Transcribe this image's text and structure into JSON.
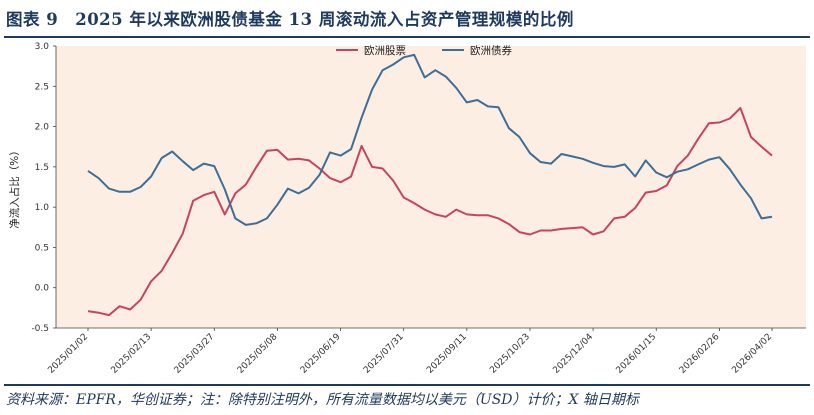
{
  "header": {
    "title": "图表 9　2025 年以来欧洲股债基金 13 周滚动流入占资产管理规模的比例"
  },
  "footer": {
    "source": "资料来源：EPFR，华创证券；注：除特别注明外，所有流量数据均以美元（USD）计价；X 轴日期标"
  },
  "chart_data": {
    "type": "line",
    "ylabel": "净流入占比（%）",
    "ylim": [
      -0.5,
      3.0
    ],
    "yticks": [
      "-0.5",
      "0.0",
      "0.5",
      "1.0",
      "1.5",
      "2.0",
      "2.5",
      "3.0"
    ],
    "xticks": [
      "2025/01/02",
      "2025/02/13",
      "2025/03/27",
      "2025/05/08",
      "2025/06/19",
      "2025/07/31",
      "2025/09/11",
      "2025/10/23",
      "2025/12/04",
      "2026/01/15",
      "2026/02/26",
      "2026/04/02"
    ],
    "x": [
      "2025/01/02",
      "2025/01/09",
      "2025/01/16",
      "2025/01/23",
      "2025/01/30",
      "2025/02/06",
      "2025/02/13",
      "2025/02/20",
      "2025/02/27",
      "2025/03/06",
      "2025/03/13",
      "2025/03/20",
      "2025/03/27",
      "2025/04/03",
      "2025/04/10",
      "2025/04/17",
      "2025/04/24",
      "2025/05/01",
      "2025/05/08",
      "2025/05/15",
      "2025/05/22",
      "2025/05/29",
      "2025/06/05",
      "2025/06/12",
      "2025/06/19",
      "2025/06/26",
      "2025/07/03",
      "2025/07/10",
      "2025/07/17",
      "2025/07/24",
      "2025/07/31",
      "2025/08/07",
      "2025/08/14",
      "2025/08/21",
      "2025/08/28",
      "2025/09/04",
      "2025/09/11",
      "2025/09/18",
      "2025/09/25",
      "2025/10/02",
      "2025/10/09",
      "2025/10/16",
      "2025/10/23",
      "2025/10/30",
      "2025/11/06",
      "2025/11/13",
      "2025/11/20",
      "2025/11/27",
      "2025/12/04",
      "2025/12/11",
      "2025/12/18",
      "2025/12/25",
      "2026/01/01",
      "2026/01/08",
      "2026/01/15",
      "2026/01/22",
      "2026/01/29",
      "2026/02/05",
      "2026/02/12",
      "2026/02/19",
      "2026/02/26",
      "2026/03/05",
      "2026/03/12",
      "2026/03/19",
      "2026/03/26",
      "2026/04/02"
    ],
    "series": [
      {
        "name": "欧洲股票",
        "color": "#c8435e",
        "values": [
          -0.29,
          -0.31,
          -0.34,
          -0.23,
          -0.27,
          -0.15,
          0.08,
          0.21,
          0.43,
          0.67,
          1.08,
          1.15,
          1.19,
          0.91,
          1.17,
          1.28,
          1.5,
          1.7,
          1.71,
          1.59,
          1.6,
          1.58,
          1.48,
          1.36,
          1.31,
          1.38,
          1.76,
          1.5,
          1.48,
          1.33,
          1.12,
          1.05,
          0.97,
          0.91,
          0.88,
          0.97,
          0.91,
          0.9,
          0.9,
          0.86,
          0.79,
          0.69,
          0.66,
          0.71,
          0.71,
          0.73,
          0.74,
          0.75,
          0.66,
          0.7,
          0.86,
          0.88,
          0.99,
          1.18,
          1.2,
          1.27,
          1.51,
          1.64,
          1.85,
          2.04,
          2.05,
          2.1,
          2.23,
          1.87,
          1.75,
          1.64
        ]
      },
      {
        "name": "欧洲债券",
        "color": "#3d6e96",
        "values": [
          1.45,
          1.36,
          1.23,
          1.19,
          1.19,
          1.25,
          1.38,
          1.61,
          1.69,
          1.57,
          1.46,
          1.54,
          1.51,
          1.22,
          0.86,
          0.78,
          0.8,
          0.86,
          1.03,
          1.23,
          1.17,
          1.24,
          1.4,
          1.68,
          1.64,
          1.72,
          2.11,
          2.46,
          2.7,
          2.77,
          2.86,
          2.89,
          2.61,
          2.7,
          2.62,
          2.48,
          2.3,
          2.33,
          2.25,
          2.24,
          1.98,
          1.87,
          1.67,
          1.56,
          1.54,
          1.66,
          1.63,
          1.6,
          1.55,
          1.51,
          1.5,
          1.53,
          1.38,
          1.58,
          1.43,
          1.37,
          1.44,
          1.47,
          1.53,
          1.59,
          1.62,
          1.47,
          1.28,
          1.11,
          0.86,
          0.88
        ]
      }
    ],
    "legend": "top-center",
    "grid": false,
    "background": "#fdeee4"
  }
}
